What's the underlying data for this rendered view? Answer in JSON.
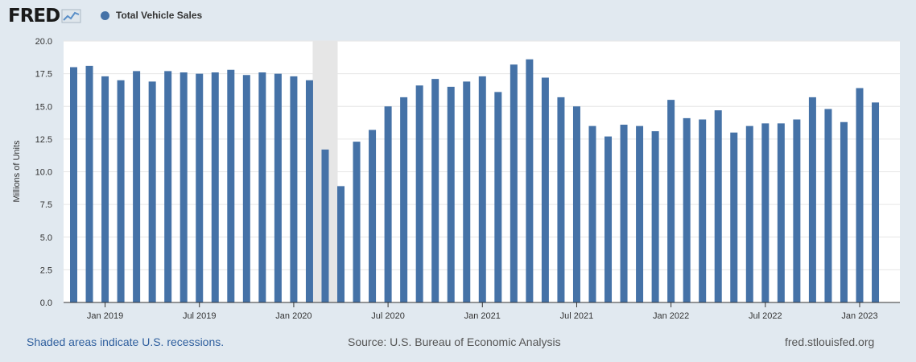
{
  "header": {
    "logo_text": "FRED",
    "logo_icon": "line-chart-icon",
    "legend_label": "Total Vehicle Sales",
    "series_color": "#4572a7"
  },
  "footer": {
    "recession_note": "Shaded areas indicate U.S. recessions.",
    "source": "Source: U.S. Bureau of Economic Analysis",
    "site": "fred.stlouisfed.org"
  },
  "chart_data": {
    "type": "bar",
    "title": "",
    "ylabel": "Millions of Units",
    "xlabel": "",
    "ylim": [
      0,
      20
    ],
    "yticks": [
      "0.0",
      "2.5",
      "5.0",
      "7.5",
      "10.0",
      "12.5",
      "15.0",
      "17.5",
      "20.0"
    ],
    "x": [
      "2018-11",
      "2018-12",
      "2019-01",
      "2019-02",
      "2019-03",
      "2019-04",
      "2019-05",
      "2019-06",
      "2019-07",
      "2019-08",
      "2019-09",
      "2019-10",
      "2019-11",
      "2019-12",
      "2020-01",
      "2020-02",
      "2020-03",
      "2020-04",
      "2020-05",
      "2020-06",
      "2020-07",
      "2020-08",
      "2020-09",
      "2020-10",
      "2020-11",
      "2020-12",
      "2021-01",
      "2021-02",
      "2021-03",
      "2021-04",
      "2021-05",
      "2021-06",
      "2021-07",
      "2021-08",
      "2021-09",
      "2021-10",
      "2021-11",
      "2021-12",
      "2022-01",
      "2022-02",
      "2022-03",
      "2022-04",
      "2022-05",
      "2022-06",
      "2022-07",
      "2022-08",
      "2022-09",
      "2022-10",
      "2022-11",
      "2022-12",
      "2023-01",
      "2023-02"
    ],
    "xtick_labels": [
      {
        "x": "2019-01",
        "label": "Jan 2019"
      },
      {
        "x": "2019-07",
        "label": "Jul 2019"
      },
      {
        "x": "2020-01",
        "label": "Jan 2020"
      },
      {
        "x": "2020-07",
        "label": "Jul 2020"
      },
      {
        "x": "2021-01",
        "label": "Jan 2021"
      },
      {
        "x": "2021-07",
        "label": "Jul 2021"
      },
      {
        "x": "2022-01",
        "label": "Jan 2022"
      },
      {
        "x": "2022-07",
        "label": "Jul 2022"
      },
      {
        "x": "2023-01",
        "label": "Jan 2023"
      }
    ],
    "series": [
      {
        "name": "Total Vehicle Sales",
        "values": [
          18.0,
          18.1,
          17.3,
          17.0,
          17.7,
          16.9,
          17.7,
          17.6,
          17.5,
          17.6,
          17.8,
          17.4,
          17.6,
          17.5,
          17.3,
          17.0,
          11.7,
          8.9,
          12.3,
          13.2,
          15.0,
          15.7,
          16.6,
          17.1,
          16.5,
          16.9,
          17.3,
          16.1,
          18.2,
          18.6,
          17.2,
          15.7,
          15.0,
          13.5,
          12.7,
          13.6,
          13.5,
          13.1,
          15.5,
          14.1,
          14.0,
          14.7,
          13.0,
          13.5,
          13.7,
          13.7,
          14.0,
          15.7,
          14.8,
          13.8,
          16.4,
          15.3
        ]
      }
    ],
    "recessions": [
      {
        "start": "2020-02",
        "end": "2020-04"
      }
    ],
    "grid": true,
    "legend": "top-left"
  }
}
